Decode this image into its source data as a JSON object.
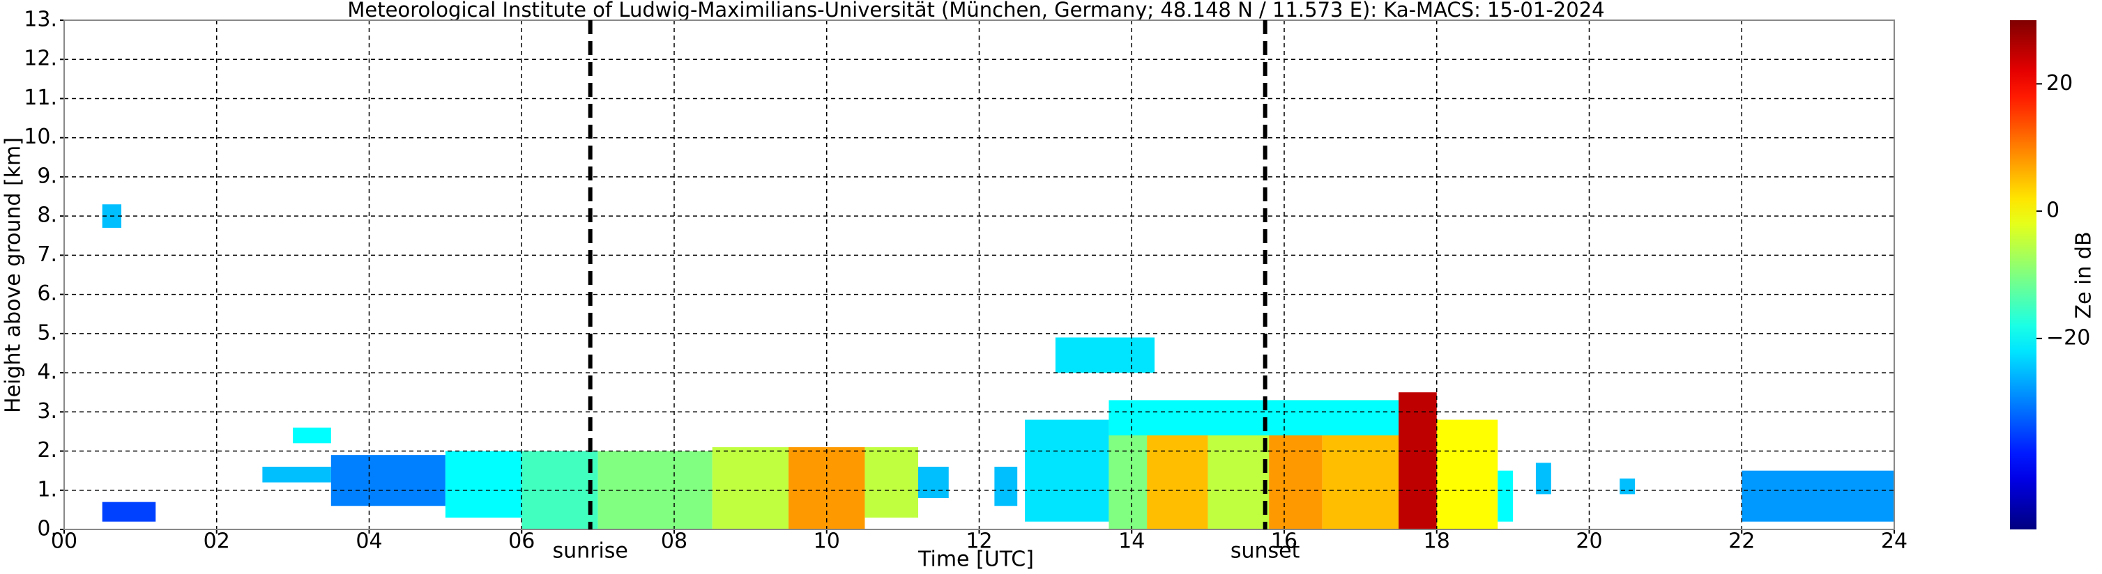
{
  "chart_data": {
    "type": "heatmap",
    "title": "Meteorological Institute of Ludwig-Maximilians-Universität (München, Germany; 48.148 N / 11.573 E):    Ka-MACS: 15-01-2024",
    "xlabel": "Time [UTC]",
    "ylabel": "Height above ground [km]",
    "xlim": [
      0,
      24
    ],
    "xticks": [
      {
        "value": 0,
        "label": "00"
      },
      {
        "value": 2,
        "label": "02"
      },
      {
        "value": 4,
        "label": "04"
      },
      {
        "value": 6,
        "label": "06"
      },
      {
        "value": 8,
        "label": "08"
      },
      10,
      12,
      14,
      16,
      18,
      20,
      22,
      24
    ],
    "ylim": [
      0,
      13
    ],
    "yticks": [
      {
        "value": 0,
        "label": "0."
      },
      {
        "value": 1,
        "label": "1."
      },
      {
        "value": 2,
        "label": "2."
      },
      {
        "value": 3,
        "label": "3."
      },
      {
        "value": 4,
        "label": "4."
      },
      {
        "value": 5,
        "label": "5."
      },
      {
        "value": 6,
        "label": "6."
      },
      {
        "value": 7,
        "label": "7."
      },
      {
        "value": 8,
        "label": "8."
      },
      {
        "value": 9,
        "label": "9."
      },
      {
        "value": 10,
        "label": "10."
      },
      {
        "value": 11,
        "label": "11."
      },
      {
        "value": 12,
        "label": "12."
      },
      {
        "value": 13,
        "label": "13."
      }
    ],
    "grid": true,
    "colormap": "jet",
    "colorbar_label": "Ze in dB",
    "clim": [
      -50,
      30
    ],
    "cticks": [
      20,
      0,
      {
        "value": -20,
        "label": "−20"
      }
    ],
    "annotations": [
      {
        "text": "sunrise",
        "x": 6.9
      },
      {
        "text": "sunset",
        "x": 15.75
      }
    ],
    "cells": [
      {
        "x": [
          0.5,
          1.2
        ],
        "y": [
          0.2,
          0.7
        ],
        "ze": -35
      },
      {
        "x": [
          0.5,
          0.75
        ],
        "y": [
          7.7,
          8.3
        ],
        "ze": -25
      },
      {
        "x": [
          3.0,
          3.5
        ],
        "y": [
          2.2,
          2.6
        ],
        "ze": -20
      },
      {
        "x": [
          2.6,
          3.5
        ],
        "y": [
          1.2,
          1.6
        ],
        "ze": -25
      },
      {
        "x": [
          3.5,
          5.0
        ],
        "y": [
          0.6,
          1.9
        ],
        "ze": -30
      },
      {
        "x": [
          5.0,
          6.0
        ],
        "y": [
          0.3,
          2.0
        ],
        "ze": -20
      },
      {
        "x": [
          6.0,
          7.0
        ],
        "y": [
          0.0,
          2.0
        ],
        "ze": -15
      },
      {
        "x": [
          7.0,
          8.5
        ],
        "y": [
          0.0,
          2.0
        ],
        "ze": -10
      },
      {
        "x": [
          8.5,
          9.5
        ],
        "y": [
          0.0,
          2.1
        ],
        "ze": -5
      },
      {
        "x": [
          9.5,
          10.5
        ],
        "y": [
          0.0,
          2.1
        ],
        "ze": 8
      },
      {
        "x": [
          10.5,
          11.2
        ],
        "y": [
          0.3,
          2.1
        ],
        "ze": -5
      },
      {
        "x": [
          11.2,
          11.6
        ],
        "y": [
          0.8,
          1.6
        ],
        "ze": -25
      },
      {
        "x": [
          12.2,
          12.5
        ],
        "y": [
          0.6,
          1.6
        ],
        "ze": -25
      },
      {
        "x": [
          12.6,
          13.7
        ],
        "y": [
          0.2,
          2.8
        ],
        "ze": -22
      },
      {
        "x": [
          13.7,
          14.2
        ],
        "y": [
          0.0,
          3.0
        ],
        "ze": -10
      },
      {
        "x": [
          14.2,
          15.0
        ],
        "y": [
          0.0,
          3.0
        ],
        "ze": 5
      },
      {
        "x": [
          15.0,
          15.8
        ],
        "y": [
          0.0,
          3.2
        ],
        "ze": -5
      },
      {
        "x": [
          15.8,
          16.5
        ],
        "y": [
          0.0,
          3.3
        ],
        "ze": 8
      },
      {
        "x": [
          16.5,
          17.5
        ],
        "y": [
          0.0,
          3.3
        ],
        "ze": 5
      },
      {
        "x": [
          17.5,
          18.0
        ],
        "y": [
          0.0,
          3.5
        ],
        "ze": 25
      },
      {
        "x": [
          18.0,
          18.8
        ],
        "y": [
          0.0,
          2.8
        ],
        "ze": 0
      },
      {
        "x": [
          13.7,
          17.5
        ],
        "y": [
          2.4,
          3.3
        ],
        "ze": -20
      },
      {
        "x": [
          18.8,
          19.0
        ],
        "y": [
          0.2,
          1.5
        ],
        "ze": -20
      },
      {
        "x": [
          19.3,
          19.5
        ],
        "y": [
          0.9,
          1.7
        ],
        "ze": -25
      },
      {
        "x": [
          13.0,
          14.3
        ],
        "y": [
          4.0,
          4.9
        ],
        "ze": -22
      },
      {
        "x": [
          20.4,
          20.6
        ],
        "y": [
          0.9,
          1.3
        ],
        "ze": -25
      },
      {
        "x": [
          22.0,
          24.0
        ],
        "y": [
          0.2,
          1.5
        ],
        "ze": -28
      }
    ]
  }
}
